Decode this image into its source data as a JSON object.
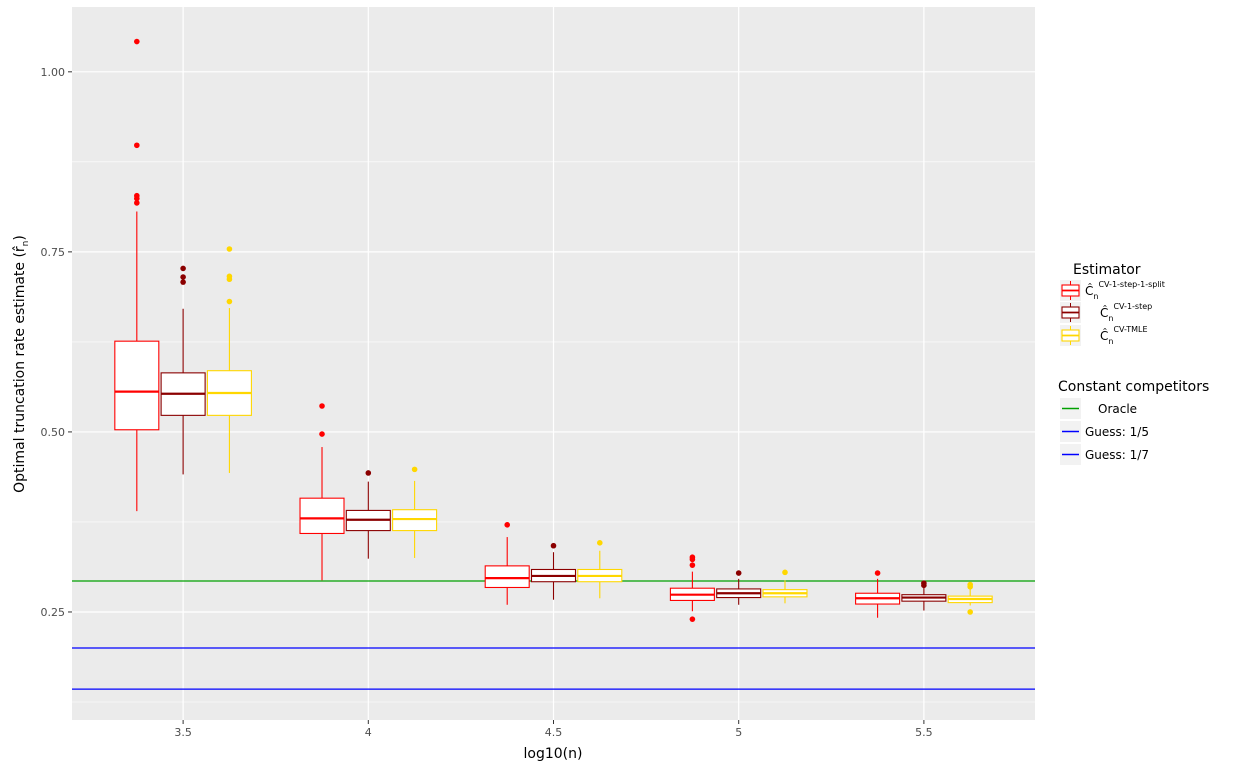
{
  "chart_data": {
    "type": "boxplot",
    "xlabel": "log10(n)",
    "ylabel": "Optimal truncation rate estimate (r̂",
    "ylabel_sub": "n",
    "ylabel_close": ")",
    "x_ticks": [
      {
        "value": 3.5,
        "label": "3.5"
      },
      {
        "value": 4.0,
        "label": "4"
      },
      {
        "value": 4.5,
        "label": "4.5"
      },
      {
        "value": 5.0,
        "label": "5"
      },
      {
        "value": 5.5,
        "label": "5.5"
      }
    ],
    "y_ticks": [
      {
        "value": 0.25,
        "label": "0.25"
      },
      {
        "value": 0.5,
        "label": "0.50"
      },
      {
        "value": 0.75,
        "label": "0.75"
      },
      {
        "value": 1.0,
        "label": "1.00"
      }
    ],
    "xlim": [
      3.2,
      5.8
    ],
    "ylim": [
      0.1,
      1.09
    ],
    "grid": true,
    "legend_position": "right",
    "series": [
      {
        "name_base": "Ĉ",
        "name_sub": "n",
        "name_sup": "CV-1-step-1-split",
        "color": "#ff0000",
        "boxes": [
          {
            "x": 3.375,
            "whisker_low": 0.39,
            "q1": 0.503,
            "median": 0.556,
            "q3": 0.626,
            "whisker_high": 0.806,
            "outliers": [
              0.818,
              0.824,
              0.828,
              0.898,
              1.042
            ]
          },
          {
            "x": 3.875,
            "whisker_low": 0.294,
            "q1": 0.359,
            "median": 0.38,
            "q3": 0.408,
            "whisker_high": 0.479,
            "outliers": [
              0.497,
              0.536
            ]
          },
          {
            "x": 4.375,
            "whisker_low": 0.26,
            "q1": 0.284,
            "median": 0.297,
            "q3": 0.314,
            "whisker_high": 0.354,
            "outliers": [
              0.371
            ]
          },
          {
            "x": 4.875,
            "whisker_low": 0.251,
            "q1": 0.266,
            "median": 0.274,
            "q3": 0.283,
            "whisker_high": 0.306,
            "outliers": [
              0.24,
              0.315,
              0.323,
              0.326
            ]
          },
          {
            "x": 5.375,
            "whisker_low": 0.242,
            "q1": 0.261,
            "median": 0.269,
            "q3": 0.276,
            "whisker_high": 0.296,
            "outliers": [
              0.304
            ]
          }
        ]
      },
      {
        "name_base": "Ĉ",
        "name_sub": "n",
        "name_sup": "CV-1-step",
        "color": "#8b0000",
        "boxes": [
          {
            "x": 3.5,
            "whisker_low": 0.441,
            "q1": 0.523,
            "median": 0.553,
            "q3": 0.582,
            "whisker_high": 0.671,
            "outliers": [
              0.708,
              0.715,
              0.727
            ]
          },
          {
            "x": 4.0,
            "whisker_low": 0.324,
            "q1": 0.363,
            "median": 0.378,
            "q3": 0.391,
            "whisker_high": 0.431,
            "outliers": [
              0.443
            ]
          },
          {
            "x": 4.5,
            "whisker_low": 0.267,
            "q1": 0.292,
            "median": 0.3,
            "q3": 0.309,
            "whisker_high": 0.333,
            "outliers": [
              0.342
            ]
          },
          {
            "x": 5.0,
            "whisker_low": 0.26,
            "q1": 0.27,
            "median": 0.276,
            "q3": 0.282,
            "whisker_high": 0.296,
            "outliers": [
              0.304
            ]
          },
          {
            "x": 5.5,
            "whisker_low": 0.252,
            "q1": 0.265,
            "median": 0.27,
            "q3": 0.274,
            "whisker_high": 0.285,
            "outliers": [
              0.287,
              0.29
            ]
          }
        ]
      },
      {
        "name_base": "Ĉ",
        "name_sub": "n",
        "name_sup": "CV-TMLE",
        "color": "#ffd700",
        "boxes": [
          {
            "x": 3.625,
            "whisker_low": 0.443,
            "q1": 0.523,
            "median": 0.554,
            "q3": 0.585,
            "whisker_high": 0.672,
            "outliers": [
              0.681,
              0.712,
              0.716,
              0.754
            ]
          },
          {
            "x": 4.125,
            "whisker_low": 0.325,
            "q1": 0.363,
            "median": 0.379,
            "q3": 0.392,
            "whisker_high": 0.432,
            "outliers": [
              0.448
            ]
          },
          {
            "x": 4.625,
            "whisker_low": 0.269,
            "q1": 0.292,
            "median": 0.3,
            "q3": 0.309,
            "whisker_high": 0.335,
            "outliers": [
              0.346
            ]
          },
          {
            "x": 5.125,
            "whisker_low": 0.262,
            "q1": 0.271,
            "median": 0.276,
            "q3": 0.281,
            "whisker_high": 0.294,
            "outliers": [
              0.305
            ]
          },
          {
            "x": 5.625,
            "whisker_low": 0.259,
            "q1": 0.263,
            "median": 0.268,
            "q3": 0.272,
            "whisker_high": 0.282,
            "outliers": [
              0.25,
              0.285,
              0.288
            ]
          }
        ]
      }
    ],
    "constant_lines": [
      {
        "name": "Oracle",
        "value": 0.293,
        "color": "#00a000"
      },
      {
        "name": "Guess: 1/5",
        "value": 0.2,
        "color": "#0000ff"
      },
      {
        "name": "Guess: 1/7",
        "value": 0.142857,
        "color": "#0000ff"
      }
    ],
    "legend": {
      "estimator_title": "Estimator",
      "constant_title": "Constant competitors"
    }
  }
}
